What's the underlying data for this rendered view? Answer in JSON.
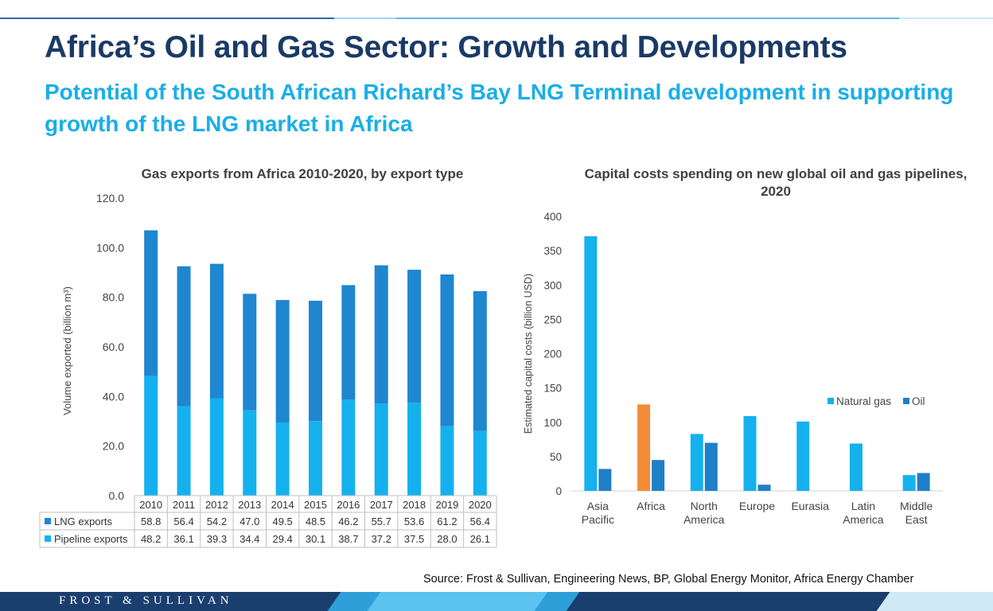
{
  "header": {
    "title": "Africa’s Oil and Gas Sector: Growth and Developments",
    "subtitle": "Potential of the South African Richard’s Bay LNG Terminal development in supporting growth of the LNG market in Africa"
  },
  "chart_data": [
    {
      "type": "bar",
      "stacked": true,
      "title": "Gas exports from Africa 2010-2020, by export type",
      "xlabel": "",
      "ylabel": "Volume exported (billion m³)",
      "ylim": [
        0,
        120
      ],
      "yticks": [
        "0.0",
        "20.0",
        "40.0",
        "60.0",
        "80.0",
        "100.0",
        "120.0"
      ],
      "categories": [
        "2010",
        "2011",
        "2012",
        "2013",
        "2014",
        "2015",
        "2016",
        "2017",
        "2018",
        "2019",
        "2020"
      ],
      "series": [
        {
          "name": "LNG exports",
          "color": "#1f86d0",
          "values": [
            58.8,
            56.4,
            54.2,
            47.0,
            49.5,
            48.5,
            46.2,
            55.7,
            53.6,
            61.2,
            56.4
          ],
          "labels": [
            "58.8",
            "56.4",
            "54.2",
            "47.0",
            "49.5",
            "48.5",
            "46.2",
            "55.7",
            "53.6",
            "61.2",
            "56.4"
          ]
        },
        {
          "name": "Pipeline exports",
          "color": "#15b1ee",
          "values": [
            48.2,
            36.1,
            39.3,
            34.4,
            29.4,
            30.1,
            38.7,
            37.2,
            37.5,
            28.0,
            26.1
          ],
          "labels": [
            "48.2",
            "36.1",
            "39.3",
            "34.4",
            "29.4",
            "30.1",
            "38.7",
            "37.2",
            "37.5",
            "28.0",
            "26.1"
          ]
        }
      ],
      "data_table": true,
      "grid": false
    },
    {
      "type": "bar",
      "title": "Capital costs spending on new global oil and gas pipelines, 2020",
      "xlabel": "",
      "ylabel": "Estimated capital costs (billion USD)",
      "ylim": [
        0,
        400
      ],
      "yticks": [
        "0",
        "50",
        "100",
        "150",
        "200",
        "250",
        "300",
        "350",
        "400"
      ],
      "categories": [
        [
          "Asia",
          "Pacific"
        ],
        [
          "Africa"
        ],
        [
          "North",
          "America"
        ],
        [
          "Europe"
        ],
        [
          "Eurasia"
        ],
        [
          "Latin",
          "America"
        ],
        [
          "Middle",
          "East"
        ]
      ],
      "series": [
        {
          "name": "Natural gas",
          "color": "#15b1ee",
          "values": [
            371,
            126,
            83,
            109,
            101,
            69,
            23
          ]
        },
        {
          "name": "Oil",
          "color": "#1f7fc8",
          "values": [
            32,
            45,
            70,
            9,
            null,
            null,
            26
          ]
        }
      ],
      "highlight": {
        "category_index": 1,
        "series_index": 0,
        "color": "#f28c38"
      },
      "legend": "right",
      "grid": false
    }
  ],
  "source": "Source: Frost & Sullivan, Engineering News, BP,  Global Energy Monitor, Africa Energy Chamber",
  "footer": {
    "brand": "FROST & SULLIVAN"
  },
  "colors": {
    "title": "#1a3a66",
    "subtitle": "#19aee8",
    "footer": "#1a3f6f"
  }
}
